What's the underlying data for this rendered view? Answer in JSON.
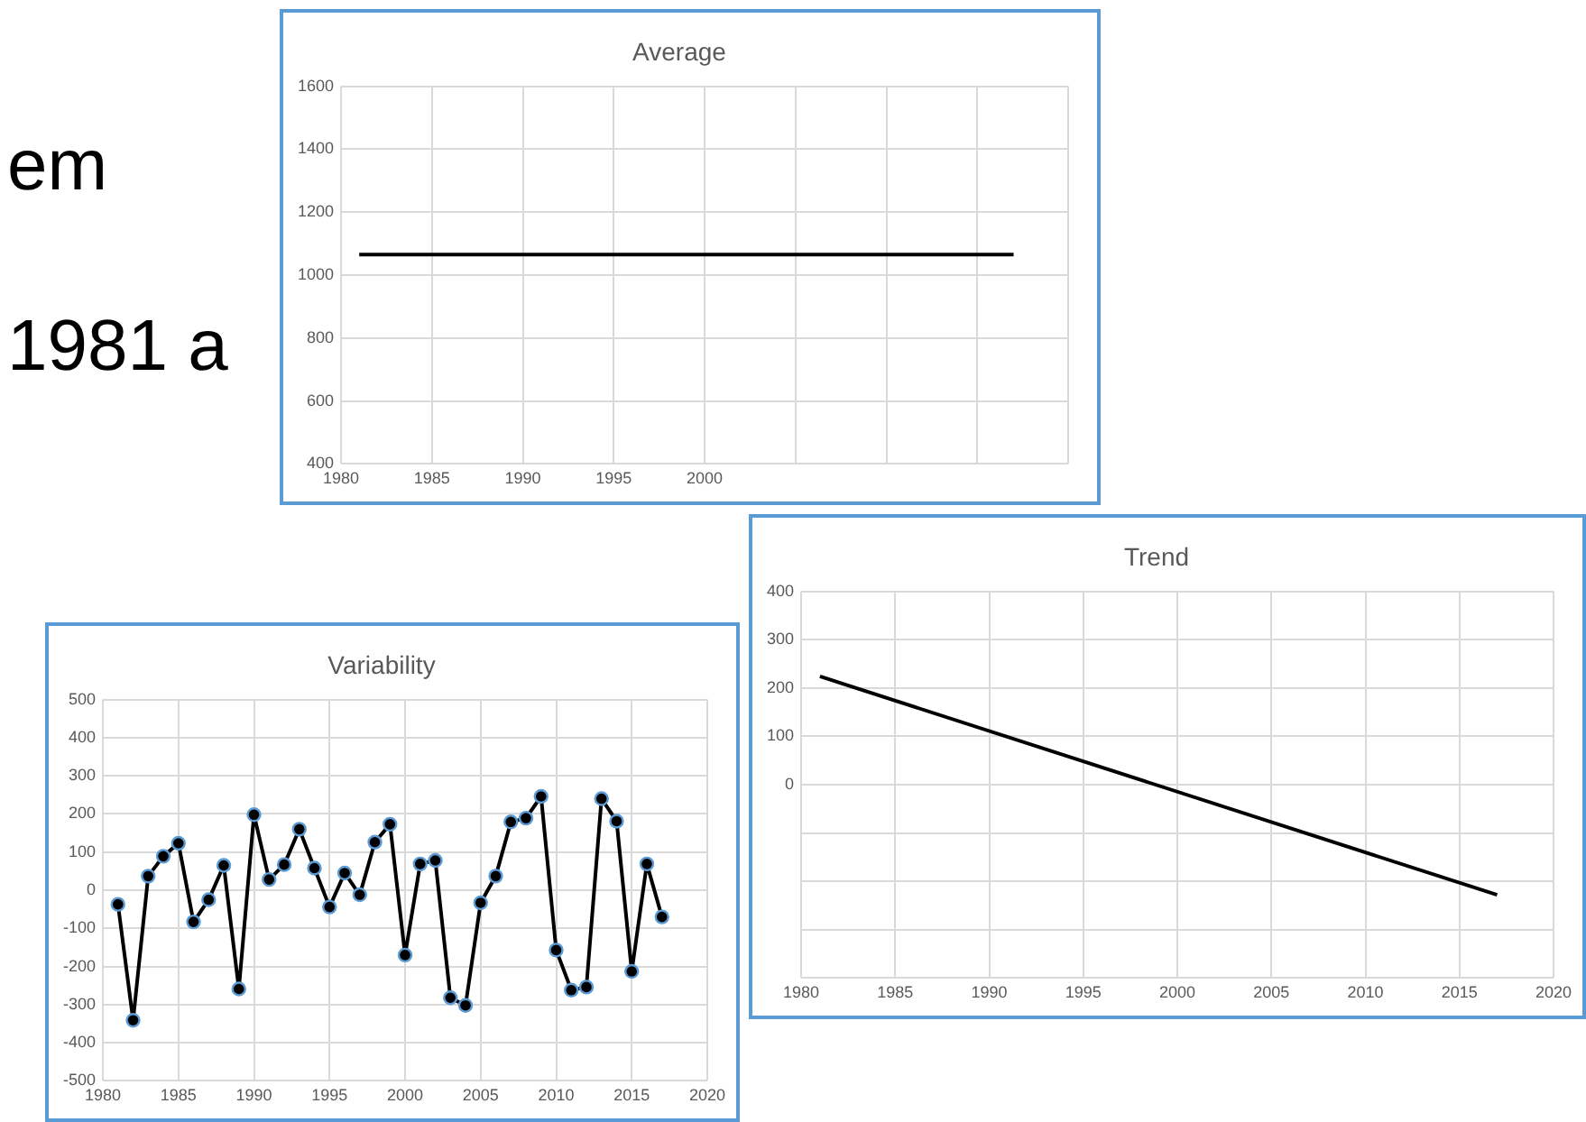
{
  "chart_data": [
    {
      "type": "line",
      "title": "Average",
      "annotations": [
        "em",
        "1981 a"
      ],
      "grid": true,
      "legend": false,
      "marker": "none",
      "xlim": [
        1980,
        2020
      ],
      "xticks": [
        1980,
        1985,
        1990,
        1995,
        2000,
        {
          "value": 2005,
          "label": null
        },
        {
          "value": 2010,
          "label": null
        },
        {
          "value": 2015,
          "label": null
        },
        {
          "value": 2020,
          "label": null
        }
      ],
      "ylim": [
        400,
        1600
      ],
      "yticks": [
        400,
        600,
        800,
        1000,
        1200,
        1400,
        1600
      ],
      "series": [
        {
          "color": "#000000",
          "x": [
            1981,
            2017
          ],
          "values": [
            1065,
            1065
          ]
        }
      ]
    },
    {
      "type": "line",
      "title": "Trend",
      "grid": true,
      "legend": false,
      "marker": "none",
      "xlim": [
        1980,
        2020
      ],
      "xticks": [
        1980,
        1985,
        1990,
        1995,
        2000,
        2005,
        2010,
        2015,
        2020
      ],
      "ylim": [
        -400,
        400
      ],
      "yticks": [
        {
          "value": -400,
          "label": null
        },
        {
          "value": -300,
          "label": null
        },
        {
          "value": -200,
          "label": null
        },
        {
          "value": -100,
          "label": null
        },
        0,
        100,
        200,
        300,
        400
      ],
      "series": [
        {
          "color": "#000000",
          "x": [
            1981,
            2017
          ],
          "values": [
            224,
            -228
          ]
        }
      ]
    },
    {
      "type": "line",
      "title": "Variability",
      "grid": true,
      "legend": false,
      "marker": "circle",
      "xlim": [
        1980,
        2020
      ],
      "xticks": [
        1980,
        1985,
        1990,
        1995,
        2000,
        2005,
        2010,
        2015,
        2020
      ],
      "ylim": [
        -500,
        500
      ],
      "yticks": [
        -500,
        -400,
        -300,
        -200,
        -100,
        0,
        100,
        200,
        300,
        400,
        500
      ],
      "series": [
        {
          "color": "#000000",
          "x": [
            1981,
            1982,
            1983,
            1984,
            1985,
            1986,
            1987,
            1988,
            1989,
            1990,
            1991,
            1992,
            1993,
            1994,
            1995,
            1996,
            1997,
            1998,
            1999,
            2000,
            2001,
            2002,
            2003,
            2004,
            2005,
            2006,
            2007,
            2008,
            2009,
            2010,
            2011,
            2012,
            2013,
            2014,
            2015,
            2016,
            2017
          ],
          "values": [
            -37,
            -341,
            37,
            89,
            123,
            -83,
            -25,
            65,
            -259,
            198,
            28,
            67,
            160,
            58,
            -44,
            45,
            -12,
            126,
            173,
            -170,
            69,
            78,
            -282,
            -302,
            -33,
            37,
            179,
            189,
            246,
            -157,
            -262,
            -254,
            240,
            181,
            -213,
            69,
            -70
          ]
        }
      ]
    }
  ]
}
